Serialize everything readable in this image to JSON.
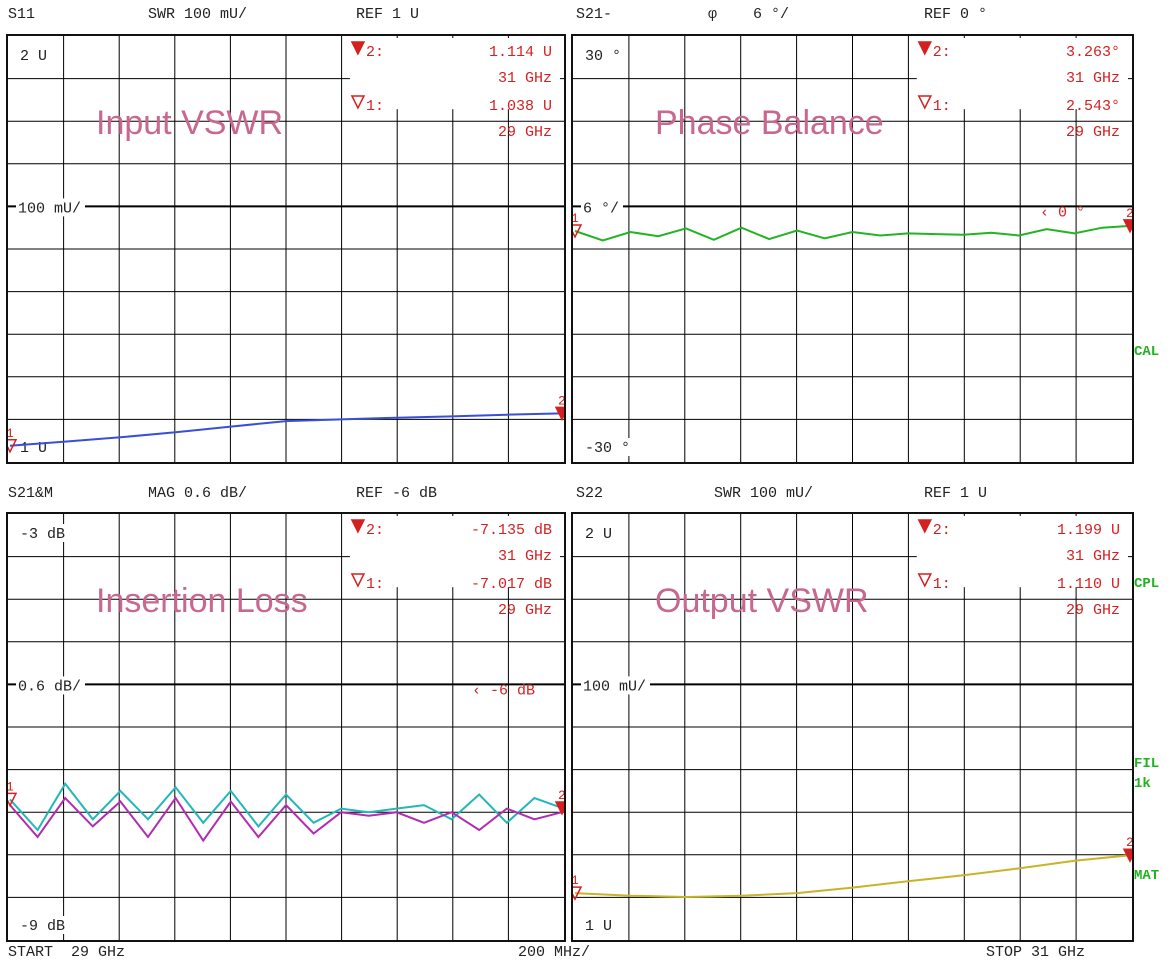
{
  "colors": {
    "grid": "#000000",
    "marker": "#d42020",
    "marker_text": "#d42020",
    "overlay": "#c8678f",
    "status_green": "#1fb31f"
  },
  "status_labels": {
    "cal": "CAL",
    "cpl": "CPL",
    "fil": "FIL",
    "fil_value": "1k",
    "mat": "MAT"
  },
  "footer": {
    "start": "START  29 GHz",
    "span": "200 MHz/",
    "stop": "STOP 31 GHz"
  },
  "chart_data": [
    {
      "type": "line",
      "header": {
        "param": "S11",
        "scale": "SWR 100 mU/",
        "ref": "REF 1 U"
      },
      "overlay_title": "Input VSWR",
      "tick_labels": {
        "top": "2 U",
        "ref": "100 mU/",
        "bottom": "1 U"
      },
      "ref_marker_label": "",
      "ylim": [
        1.0,
        2.0
      ],
      "markers": [
        {
          "num": "2",
          "value": "1.114  U",
          "freq": "31 GHz"
        },
        {
          "num": "1",
          "value": "1.038  U",
          "freq": "29 GHz"
        }
      ],
      "series": [
        {
          "name": "",
          "color": "#3a4fd8",
          "x": [
            29.0,
            29.2,
            29.4,
            29.6,
            29.8,
            30.0,
            30.2,
            30.4,
            30.6,
            30.8,
            31.0
          ],
          "values": [
            1.038,
            1.048,
            1.058,
            1.07,
            1.083,
            1.096,
            1.1,
            1.104,
            1.107,
            1.111,
            1.114
          ]
        }
      ]
    },
    {
      "type": "line",
      "header": {
        "param": "S21-",
        "scale": "φ    6 °/",
        "ref": "REF 0 °"
      },
      "overlay_title": "Phase Balance",
      "tick_labels": {
        "top": "30 °",
        "ref": "6 °/",
        "bottom": "-30 °"
      },
      "ref_marker_label": "0  °",
      "ylim": [
        -30,
        30
      ],
      "markers": [
        {
          "num": "2",
          "value": "3.263°",
          "freq": "31 GHz"
        },
        {
          "num": "1",
          "value": "2.543°",
          "freq": "29 GHz"
        }
      ],
      "series": [
        {
          "name": "",
          "color": "#22b422",
          "x": [
            29.0,
            29.1,
            29.2,
            29.3,
            29.4,
            29.5,
            29.6,
            29.7,
            29.8,
            29.9,
            30.0,
            30.1,
            30.2,
            30.3,
            30.4,
            30.5,
            30.6,
            30.7,
            30.8,
            30.9,
            31.0
          ],
          "values": [
            2.54,
            1.2,
            2.4,
            1.8,
            2.9,
            1.3,
            3.0,
            1.4,
            2.6,
            1.5,
            2.4,
            1.9,
            2.2,
            2.1,
            2.0,
            2.3,
            1.9,
            2.8,
            2.2,
            3.0,
            3.26
          ]
        }
      ]
    },
    {
      "type": "line",
      "header": {
        "param": "S21&M",
        "scale": "MAG 0.6 dB/",
        "ref": "REF -6 dB"
      },
      "overlay_title": "Insertion Loss",
      "tick_labels": {
        "top": "-3 dB",
        "ref": "0.6 dB/",
        "bottom": "-9 dB"
      },
      "ref_marker_label": "-6  dB",
      "ylim": [
        -9,
        -3
      ],
      "markers": [
        {
          "num": "2",
          "value": "-7.135 dB",
          "freq": "31 GHz"
        },
        {
          "num": "1",
          "value": "-7.017 dB",
          "freq": "29 GHz"
        }
      ],
      "series": [
        {
          "name": "",
          "color": "#22b8b8",
          "x": [
            29.0,
            29.1,
            29.2,
            29.3,
            29.4,
            29.5,
            29.6,
            29.7,
            29.8,
            29.9,
            30.0,
            30.1,
            30.2,
            30.3,
            30.4,
            30.5,
            30.6,
            30.7,
            30.8,
            30.9,
            31.0
          ],
          "values": [
            -7.02,
            -7.45,
            -6.8,
            -7.3,
            -6.9,
            -7.3,
            -6.85,
            -7.35,
            -6.9,
            -7.4,
            -6.95,
            -7.35,
            -7.15,
            -7.2,
            -7.15,
            -7.1,
            -7.3,
            -6.95,
            -7.35,
            -7.0,
            -7.14
          ]
        },
        {
          "name": "",
          "color": "#b22cb2",
          "x": [
            29.0,
            29.1,
            29.2,
            29.3,
            29.4,
            29.5,
            29.6,
            29.7,
            29.8,
            29.9,
            30.0,
            30.1,
            30.2,
            30.3,
            30.4,
            30.5,
            30.6,
            30.7,
            30.8,
            30.9,
            31.0
          ],
          "values": [
            -7.1,
            -7.55,
            -7.0,
            -7.4,
            -7.05,
            -7.55,
            -7.0,
            -7.6,
            -7.05,
            -7.55,
            -7.1,
            -7.5,
            -7.2,
            -7.25,
            -7.2,
            -7.35,
            -7.2,
            -7.45,
            -7.15,
            -7.3,
            -7.2
          ]
        }
      ]
    },
    {
      "type": "line",
      "header": {
        "param": "S22",
        "scale": "SWR 100 mU/",
        "ref": "REF 1 U"
      },
      "overlay_title": "Output VSWR",
      "tick_labels": {
        "top": "2 U",
        "ref": "100 mU/",
        "bottom": "1 U"
      },
      "ref_marker_label": "",
      "ylim": [
        1.0,
        2.0
      ],
      "markers": [
        {
          "num": "2",
          "value": "1.199  U",
          "freq": "31 GHz"
        },
        {
          "num": "1",
          "value": "1.110  U",
          "freq": "29 GHz"
        }
      ],
      "series": [
        {
          "name": "",
          "color": "#c8b428",
          "x": [
            29.0,
            29.2,
            29.4,
            29.6,
            29.8,
            30.0,
            30.2,
            30.4,
            30.6,
            30.8,
            31.0
          ],
          "values": [
            1.11,
            1.104,
            1.101,
            1.104,
            1.11,
            1.123,
            1.138,
            1.152,
            1.168,
            1.186,
            1.199
          ]
        }
      ]
    }
  ]
}
